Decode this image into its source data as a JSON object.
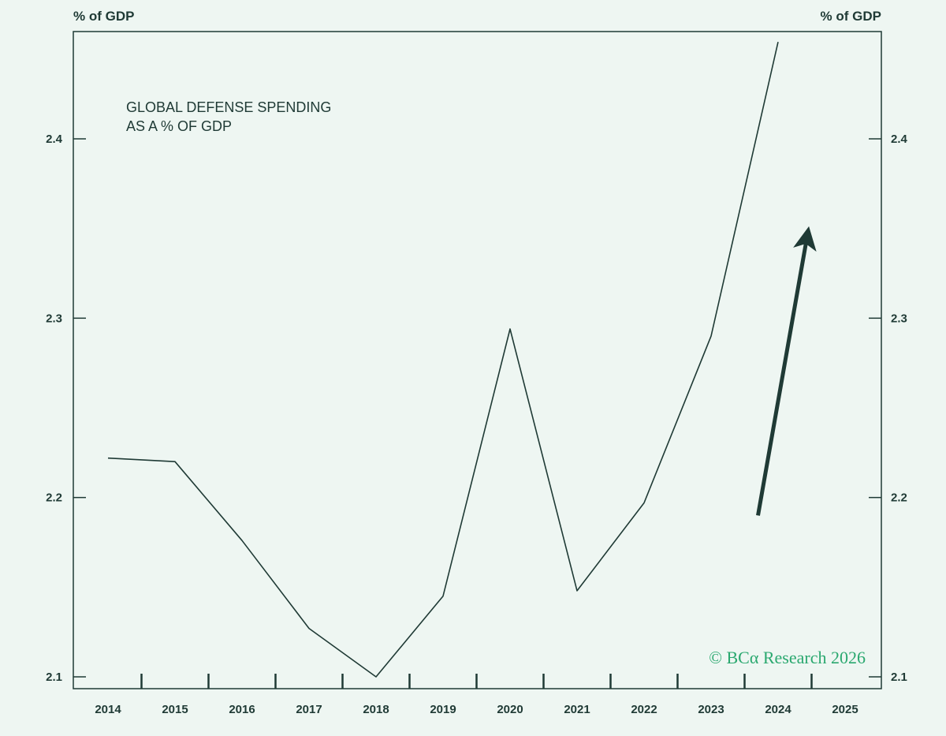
{
  "chart_data": {
    "type": "line",
    "title": "GLOBAL DEFENSE SPENDING\nAS A % OF GDP",
    "title_lines": [
      "GLOBAL DEFENSE SPENDING",
      "AS A % OF GDP"
    ],
    "y_unit_left": "% of GDP",
    "y_unit_right": "% of GDP",
    "categories": [
      "2014",
      "2015",
      "2016",
      "2017",
      "2018",
      "2019",
      "2020",
      "2021",
      "2022",
      "2023",
      "2024",
      "2025"
    ],
    "x": [
      2014,
      2015,
      2016,
      2017,
      2018,
      2019,
      2020,
      2021,
      2022,
      2023,
      2024
    ],
    "series": [
      {
        "values": [
          2.222,
          2.22,
          2.176,
          2.127,
          2.1,
          2.145,
          2.294,
          2.148,
          2.197,
          2.29,
          2.454
        ]
      }
    ],
    "arrow": {
      "from": [
        2023.7,
        2.19
      ],
      "to": [
        2024.5,
        2.35
      ],
      "meaning": "upward trend"
    },
    "ylim": [
      2.1,
      2.454
    ],
    "yticks": [
      "2.1",
      "2.2",
      "2.3",
      "2.4"
    ],
    "grid": false,
    "copyright": "© BCα Research 2026",
    "colors": {
      "line": "#1f3a35",
      "arrow": "#1f3a35",
      "background": "#eef6f2",
      "copyright": "#2aa86f"
    }
  }
}
